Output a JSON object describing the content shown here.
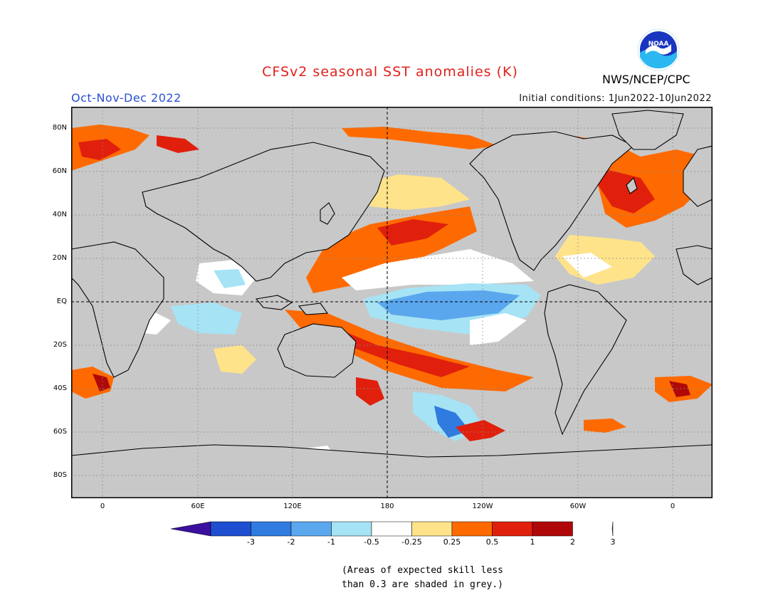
{
  "title": "CFSv2 seasonal SST anomalies (K)",
  "period": "Oct-Nov-Dec 2022",
  "initial_conditions": "Initial conditions: 1Jun2022-10Jun2022",
  "agency": "NWS/NCEP/CPC",
  "logo_text": "NOAA",
  "lat_labels": [
    "80N",
    "60N",
    "40N",
    "20N",
    "EQ",
    "20S",
    "40S",
    "60S",
    "80S"
  ],
  "lon_labels": [
    "0",
    "60E",
    "120E",
    "180",
    "120W",
    "60W",
    "0"
  ],
  "colorbar": {
    "labels": [
      "-3",
      "-2",
      "-1",
      "-0.5",
      "-0.25",
      "0.25",
      "0.5",
      "1",
      "2",
      "3"
    ],
    "colors": [
      "#3b0fa0",
      "#1d4fd0",
      "#2f7be0",
      "#5aa7ee",
      "#a6e3f5",
      "#ffffff",
      "#ffe38a",
      "#ff6a00",
      "#e0200c",
      "#b00808",
      "#7a4030"
    ]
  },
  "note_line1": "(Areas of expected skill less",
  "note_line2": "than 0.3 are shaded in grey.)",
  "colors": {
    "grey": "#c8c8c8",
    "title": "#e0201c",
    "period": "#2a4fd6"
  }
}
